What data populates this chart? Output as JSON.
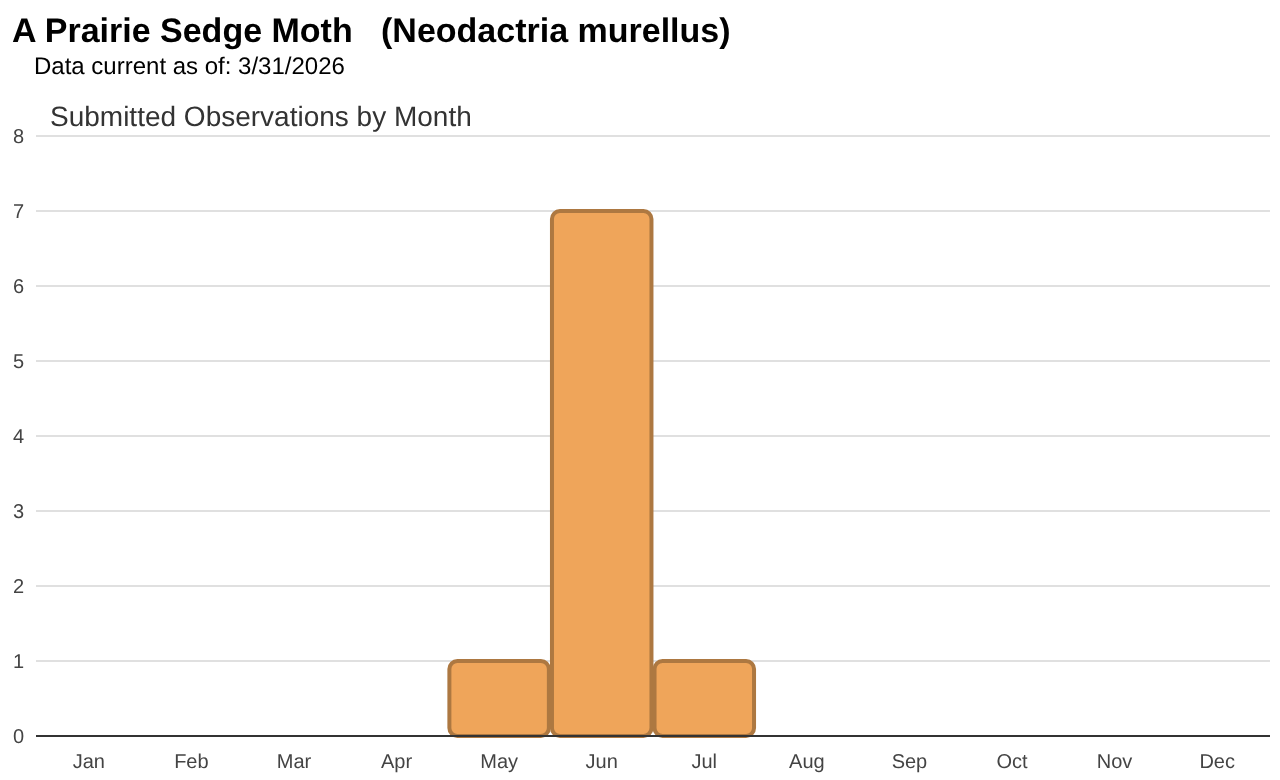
{
  "chart_data": {
    "type": "bar",
    "title": "A Prairie Sedge Moth   (Neodactria murellus)",
    "subtitle": "Data current as of: 3/31/2026",
    "annotations": [
      "Submitted Observations by Month"
    ],
    "categories": [
      "Jan",
      "Feb",
      "Mar",
      "Apr",
      "May",
      "Jun",
      "Jul",
      "Aug",
      "Sep",
      "Oct",
      "Nov",
      "Dec"
    ],
    "values": [
      0,
      0,
      0,
      0,
      1,
      7,
      1,
      0,
      0,
      0,
      0,
      0
    ],
    "color": "#efa55a",
    "ylim": [
      0,
      8
    ],
    "yticks": [
      0,
      1,
      2,
      3,
      4,
      5,
      6,
      7,
      8
    ],
    "grid": "y"
  }
}
